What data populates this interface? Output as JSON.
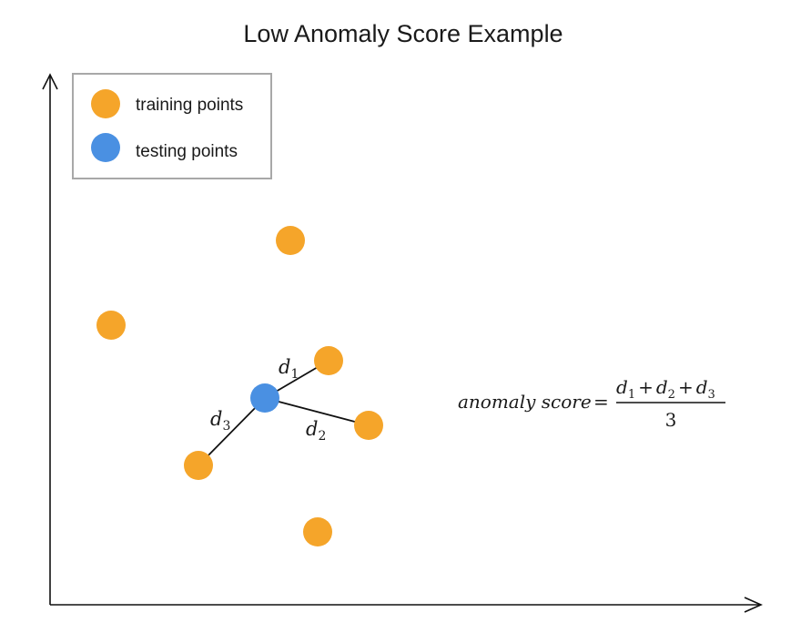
{
  "title": "Low Anomaly Score Example",
  "colors": {
    "training": "#F5A52A",
    "testing": "#4A90E2"
  },
  "legend": {
    "training_label": "training points",
    "testing_label": "testing points"
  },
  "distance_labels": [
    {
      "name": "d",
      "sub": "1"
    },
    {
      "name": "d",
      "sub": "2"
    },
    {
      "name": "d",
      "sub": "3"
    }
  ],
  "formula": {
    "lhs": "anomaly score",
    "equals": "=",
    "numerator": [
      {
        "name": "d",
        "sub": "1"
      },
      {
        "op": "+"
      },
      {
        "name": "d",
        "sub": "2"
      },
      {
        "op": "+"
      },
      {
        "name": "d",
        "sub": "3"
      }
    ],
    "denominator": "3"
  }
}
